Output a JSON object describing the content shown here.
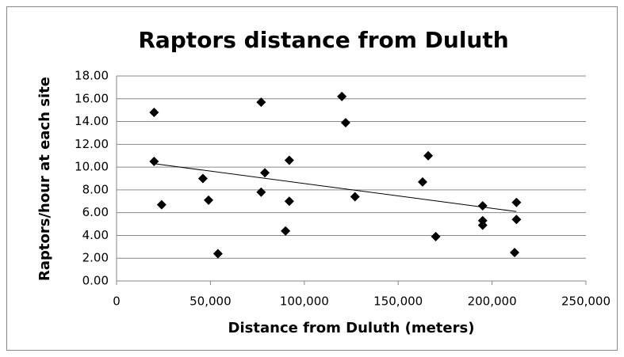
{
  "chart_data": {
    "type": "scatter",
    "title": "Raptors distance from Duluth",
    "x_label": "Distance from Duluth (meters)",
    "y_label": "Raptors/hour at each site",
    "x": [
      20000,
      20000,
      24000,
      46000,
      49000,
      54000,
      77000,
      77000,
      79000,
      90000,
      92000,
      92000,
      120000,
      122000,
      127000,
      163000,
      166000,
      170000,
      195000,
      195000,
      195000,
      212000,
      213000,
      213000
    ],
    "values": [
      14.8,
      10.5,
      6.7,
      9.0,
      7.1,
      2.4,
      15.7,
      7.8,
      9.5,
      4.4,
      10.6,
      7.0,
      16.2,
      13.9,
      7.4,
      8.7,
      11.0,
      3.9,
      6.6,
      5.3,
      4.9,
      2.5,
      6.9,
      5.4
    ],
    "color": "#000000",
    "trendline": {
      "x": [
        20000,
        213000
      ],
      "values": [
        10.3,
        6.1
      ]
    },
    "xlim": [
      0,
      250000
    ],
    "xticks": [
      0,
      {
        "value": 50000,
        "label": "50,000"
      },
      {
        "value": 100000,
        "label": "100,000"
      },
      {
        "value": 150000,
        "label": "150,000"
      },
      {
        "value": 200000,
        "label": "200,000"
      },
      {
        "value": 250000,
        "label": "250,000"
      }
    ],
    "ylim": [
      0,
      18
    ],
    "yticks": [
      {
        "value": 0,
        "label": "0.00"
      },
      {
        "value": 2,
        "label": "2.00"
      },
      {
        "value": 4,
        "label": "4.00"
      },
      {
        "value": 6,
        "label": "6.00"
      },
      {
        "value": 8,
        "label": "8.00"
      },
      {
        "value": 10,
        "label": "10.00"
      },
      {
        "value": 12,
        "label": "12.00"
      },
      {
        "value": 14,
        "label": "14.00"
      },
      {
        "value": 16,
        "label": "16.00"
      },
      {
        "value": 18,
        "label": "18.00"
      }
    ],
    "grid": true
  }
}
